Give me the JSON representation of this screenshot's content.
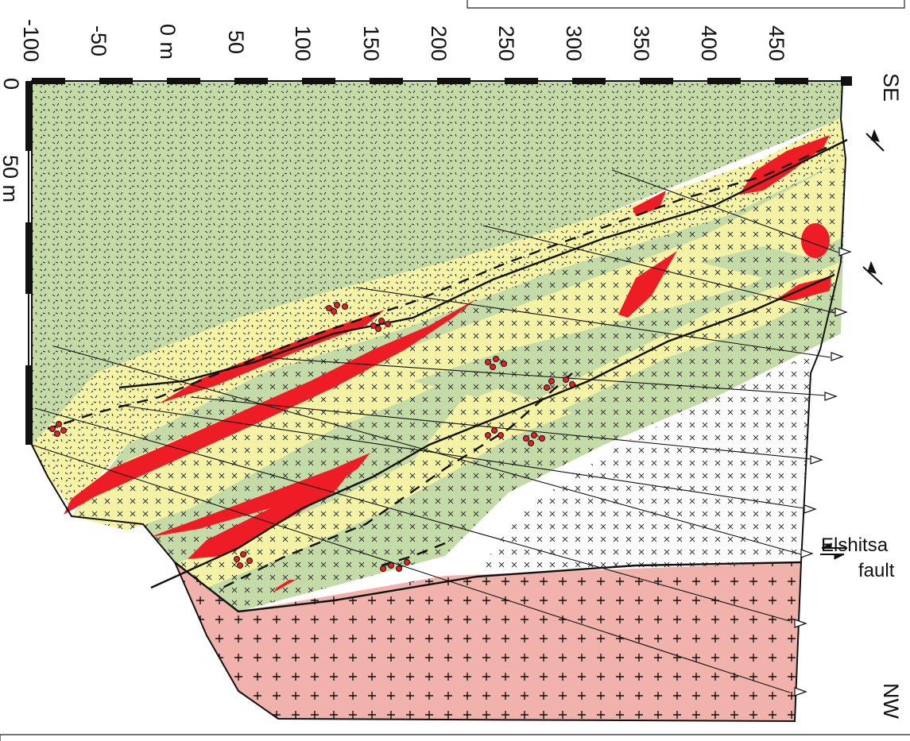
{
  "top_scale": {
    "labels": [
      "-100",
      "-50",
      "0 m",
      "50",
      "100",
      "150",
      "200",
      "250",
      "300",
      "350",
      "400",
      "450"
    ]
  },
  "left_scale": {
    "labels": [
      "0",
      "50 m"
    ]
  },
  "orientation": {
    "top_end": "SE",
    "bottom_end": "NW"
  },
  "fault": {
    "name": "Elshitsa",
    "word": "fault"
  },
  "colors": {
    "green_host": "#c5dba7",
    "yellow_zone": "#f5f3a6",
    "ore_red": "#ee1c24",
    "granite_pink": "#f0b2aa",
    "white_unit": "#ffffff"
  }
}
